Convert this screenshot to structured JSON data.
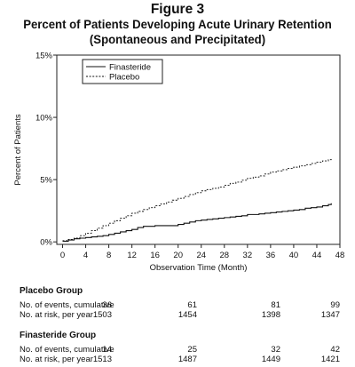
{
  "figure_label": "Figure 3",
  "title_line1": "Percent of Patients Developing Acute Urinary Retention",
  "title_line2": "(Spontaneous and Precipitated)",
  "chart_data": {
    "type": "line",
    "title": "Percent of Patients Developing Acute Urinary Retention (Spontaneous and Precipitated)",
    "xlabel": "Observation Time (Month)",
    "ylabel": "Percent of Patients",
    "xlim": [
      -1,
      48
    ],
    "ylim": [
      -0.2,
      15
    ],
    "x_ticks": [
      0,
      4,
      8,
      12,
      16,
      20,
      24,
      28,
      32,
      36,
      40,
      44,
      48
    ],
    "y_ticks": [
      0,
      5,
      10,
      15
    ],
    "y_tick_labels": [
      "0%",
      "5%",
      "10%",
      "15%"
    ],
    "grid": false,
    "legend_position": "top-left",
    "series": [
      {
        "name": "Finasteride",
        "style": "solid",
        "x": [
          0,
          1,
          2,
          3,
          4,
          5,
          6,
          7,
          8,
          9,
          10,
          11,
          12,
          13,
          14,
          15,
          16,
          17,
          18,
          19,
          20,
          21,
          22,
          23,
          24,
          25,
          26,
          27,
          28,
          29,
          30,
          31,
          32,
          33,
          34,
          35,
          36,
          37,
          38,
          39,
          40,
          41,
          42,
          43,
          44,
          45,
          46,
          46.5
        ],
        "y": [
          0.05,
          0.15,
          0.25,
          0.3,
          0.35,
          0.4,
          0.45,
          0.5,
          0.6,
          0.7,
          0.8,
          0.9,
          1.0,
          1.15,
          1.25,
          1.25,
          1.3,
          1.3,
          1.3,
          1.3,
          1.4,
          1.5,
          1.6,
          1.7,
          1.75,
          1.8,
          1.85,
          1.9,
          1.95,
          2.0,
          2.05,
          2.1,
          2.2,
          2.2,
          2.25,
          2.3,
          2.35,
          2.4,
          2.45,
          2.5,
          2.55,
          2.6,
          2.7,
          2.75,
          2.8,
          2.9,
          3.0,
          3.1
        ]
      },
      {
        "name": "Placebo",
        "style": "dashed",
        "x": [
          0,
          1,
          2,
          3,
          4,
          5,
          6,
          7,
          8,
          9,
          10,
          11,
          12,
          13,
          14,
          15,
          16,
          17,
          18,
          19,
          20,
          21,
          22,
          23,
          24,
          25,
          26,
          27,
          28,
          29,
          30,
          31,
          32,
          33,
          34,
          35,
          36,
          37,
          38,
          39,
          40,
          41,
          42,
          43,
          44,
          45,
          46,
          46.5
        ],
        "y": [
          0.1,
          0.2,
          0.3,
          0.5,
          0.7,
          0.9,
          1.1,
          1.3,
          1.5,
          1.7,
          1.9,
          2.1,
          2.3,
          2.45,
          2.6,
          2.75,
          2.9,
          3.05,
          3.2,
          3.35,
          3.5,
          3.65,
          3.8,
          3.95,
          4.1,
          4.2,
          4.3,
          4.4,
          4.55,
          4.7,
          4.8,
          4.95,
          5.1,
          5.2,
          5.3,
          5.45,
          5.6,
          5.7,
          5.8,
          5.9,
          6.0,
          6.1,
          6.2,
          6.3,
          6.4,
          6.5,
          6.6,
          6.7
        ]
      }
    ]
  },
  "placebo_group": {
    "title": "Placebo Group",
    "row1_label": "No. of events, cumulative",
    "row2_label": "No. at risk, per year",
    "events": [
      "36",
      "61",
      "81",
      "99"
    ],
    "at_risk": [
      "1503",
      "1454",
      "1398",
      "1347"
    ]
  },
  "finasteride_group": {
    "title": "Finasteride Group",
    "row1_label": "No. of events, cumulative",
    "row2_label": "No. at risk, per year",
    "events": [
      "14",
      "25",
      "32",
      "42"
    ],
    "at_risk": [
      "1513",
      "1487",
      "1449",
      "1421"
    ]
  }
}
